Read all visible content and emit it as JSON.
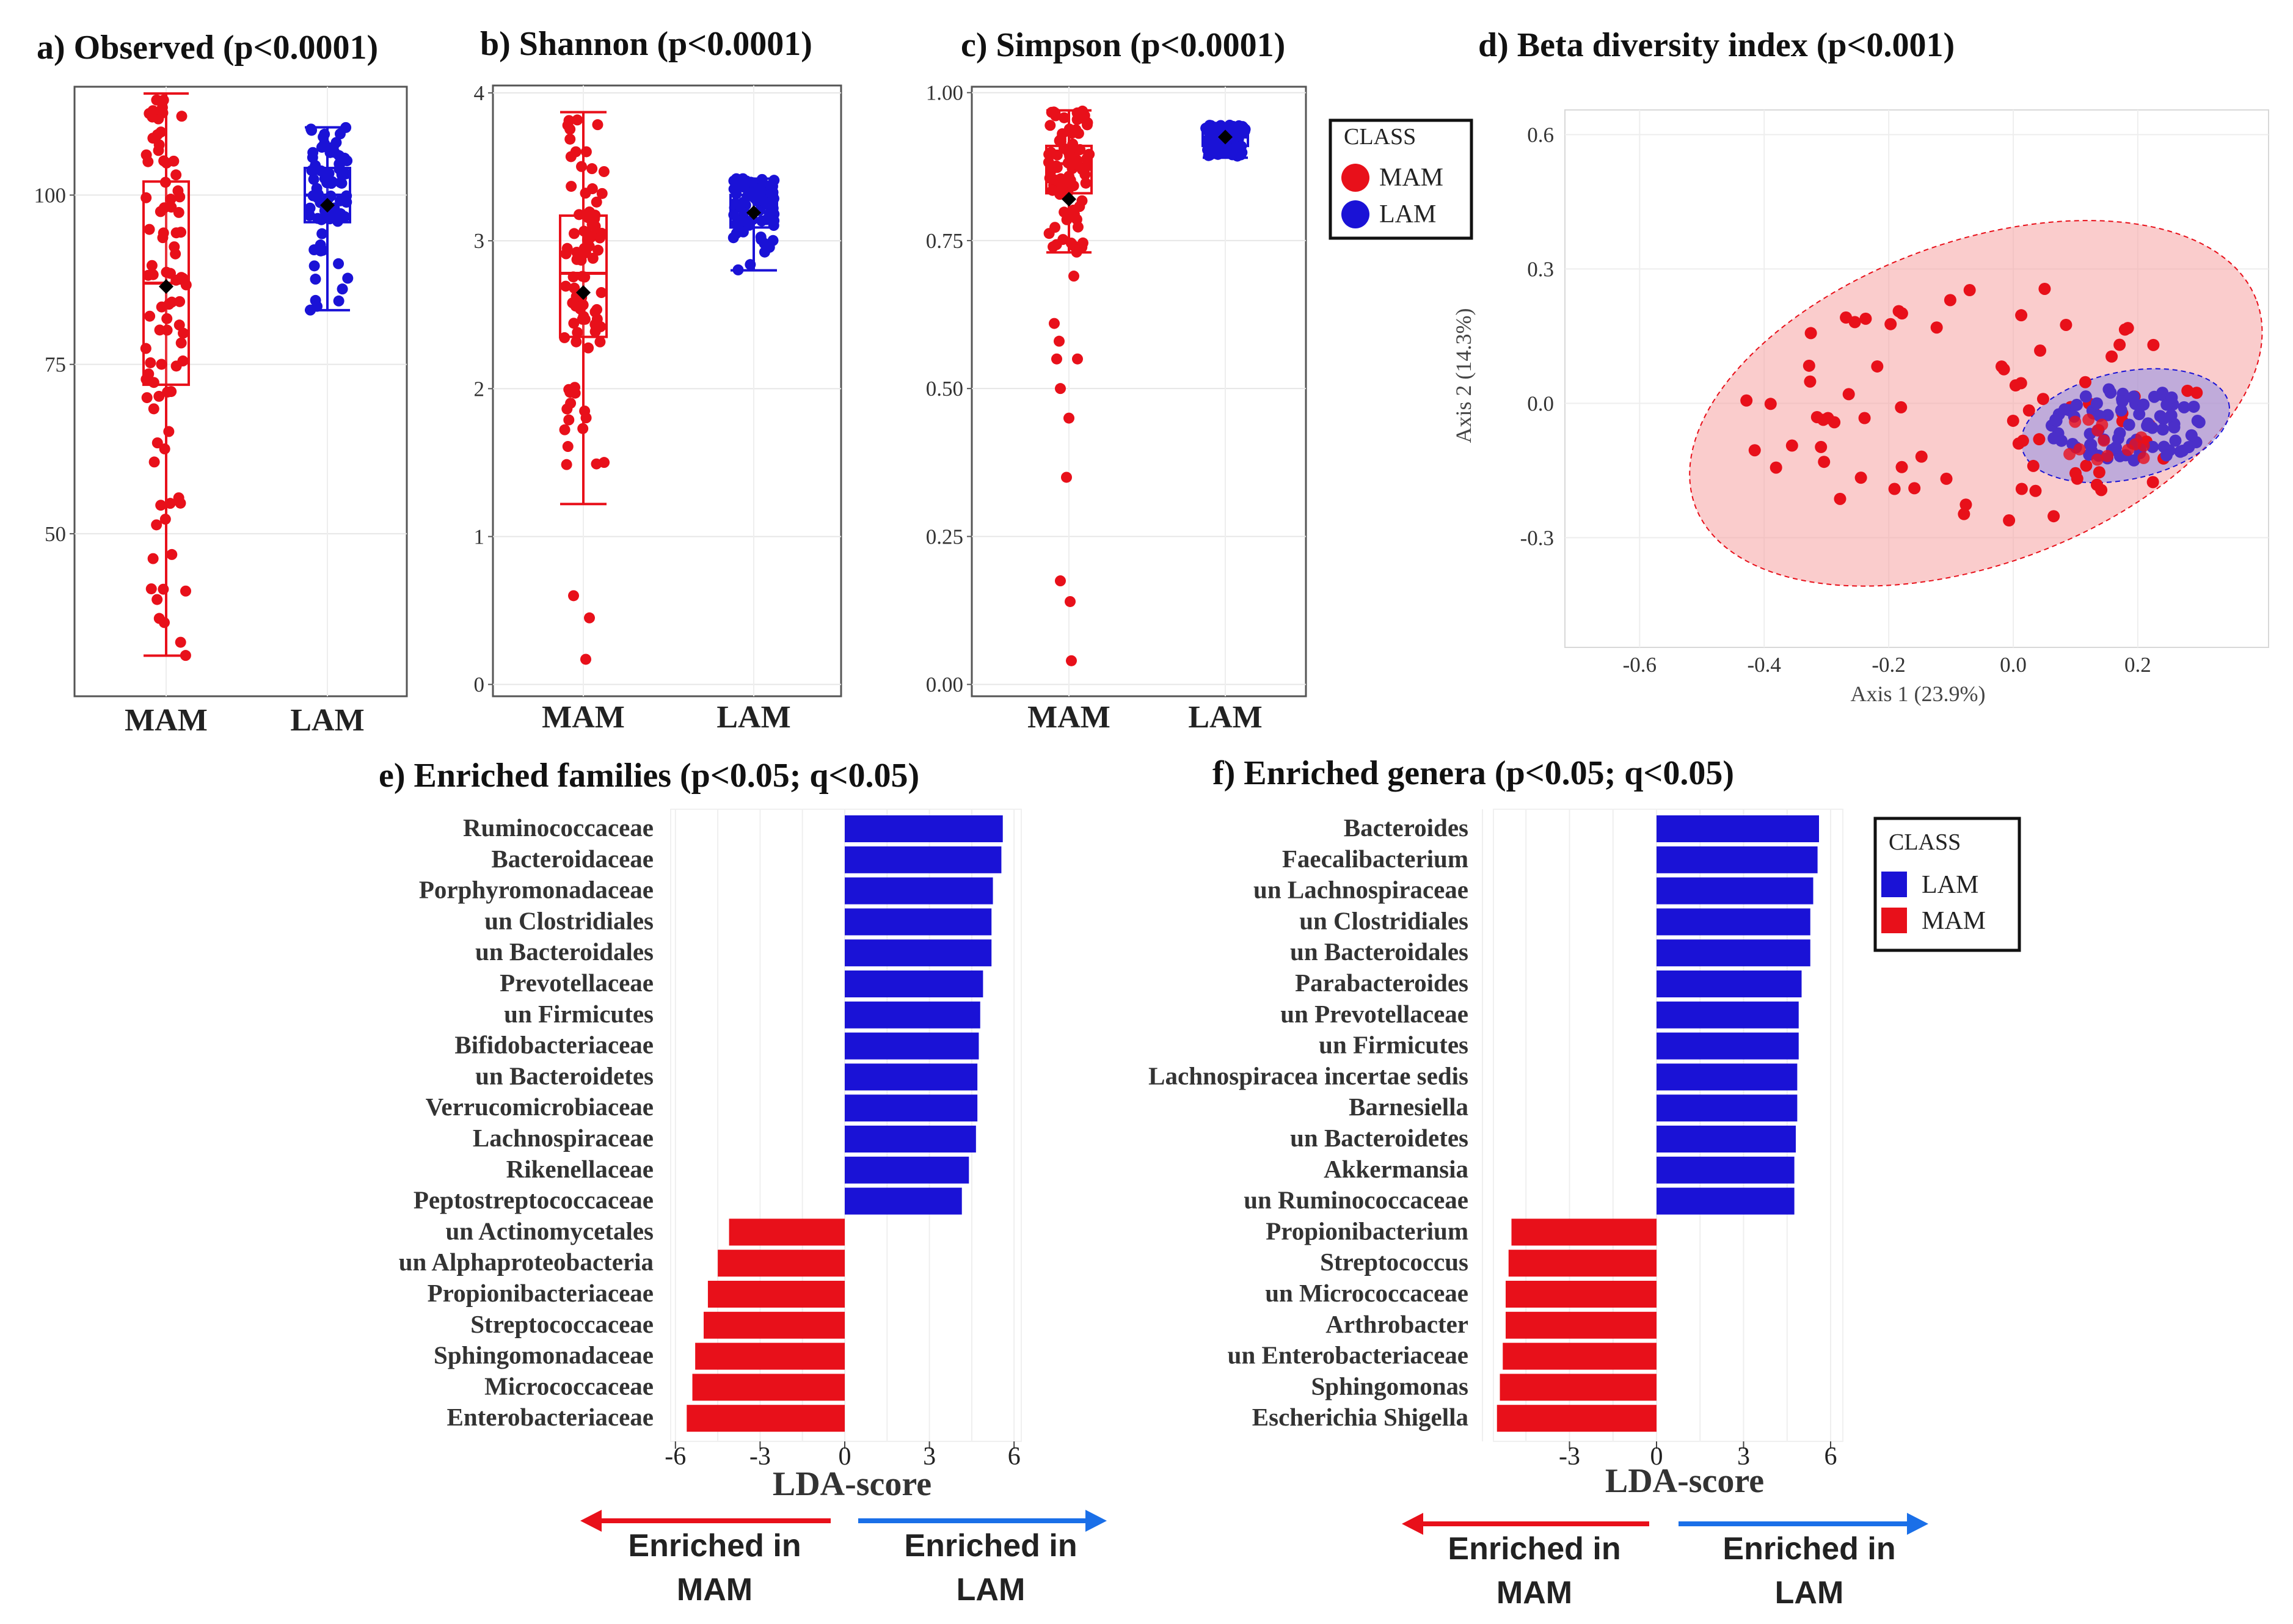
{
  "colors": {
    "mam": "#e8101a",
    "lam": "#1a12d6",
    "arrow_red": "#e8101a",
    "arrow_blue": "#1a6fe8",
    "ellipse_red_fill": "#f5a3a3",
    "ellipse_blue_fill": "#8f8fe6"
  },
  "chart_data": [
    {
      "id": "a",
      "type": "box",
      "title": "a) Observed (p<0.0001)",
      "categories": [
        "MAM",
        "LAM"
      ],
      "yticks": [
        "50",
        "75",
        "100"
      ],
      "ylim": [
        26,
        116
      ],
      "boxes": [
        {
          "name": "MAM",
          "q1": 72,
          "median": 87,
          "q3": 102,
          "whisker_low": 32,
          "whisker_high": 115,
          "mean": 86.5
        },
        {
          "name": "LAM",
          "q1": 96,
          "median": 100,
          "q3": 104,
          "whisker_low": 83,
          "whisker_high": 110,
          "mean": 98.5
        }
      ]
    },
    {
      "id": "b",
      "type": "box",
      "title": "b) Shannon (p<0.0001)",
      "categories": [
        "MAM",
        "LAM"
      ],
      "yticks": [
        "0",
        "1",
        "2",
        "3",
        "4"
      ],
      "ylim": [
        -0.08,
        4.05
      ],
      "boxes": [
        {
          "name": "MAM",
          "q1": 2.35,
          "median": 2.78,
          "q3": 3.17,
          "whisker_low": 1.22,
          "whisker_high": 3.87,
          "mean": 2.65
        },
        {
          "name": "LAM",
          "q1": 3.09,
          "median": 3.2,
          "q3": 3.31,
          "whisker_low": 2.8,
          "whisker_high": 3.42,
          "mean": 3.19
        }
      ]
    },
    {
      "id": "c",
      "type": "box",
      "title": "c) Simpson (p<0.0001)",
      "categories": [
        "MAM",
        "LAM"
      ],
      "yticks": [
        "0.00",
        "0.25",
        "0.50",
        "0.75",
        "1.00"
      ],
      "ylim": [
        -0.02,
        1.01
      ],
      "boxes": [
        {
          "name": "MAM",
          "q1": 0.83,
          "median": 0.88,
          "q3": 0.91,
          "whisker_low": 0.73,
          "whisker_high": 0.97,
          "mean": 0.82
        },
        {
          "name": "LAM",
          "q1": 0.91,
          "median": 0.925,
          "q3": 0.935,
          "whisker_low": 0.89,
          "whisker_high": 0.945,
          "mean": 0.925
        }
      ]
    },
    {
      "id": "d",
      "type": "scatter",
      "title": "d) Beta diversity index (p<0.001)",
      "xlabel": "Axis 1 (23.9%)",
      "ylabel": "Axis 2 (14.3%)",
      "xticks": [
        "-0.6",
        "-0.4",
        "-0.2",
        "0.0",
        "0.2"
      ],
      "yticks": [
        "-0.3",
        "0.0",
        "0.3",
        "0.6"
      ],
      "xlim": [
        -0.72,
        0.41
      ],
      "ylim": [
        -0.545,
        0.655
      ],
      "ellipses": [
        {
          "name": "MAM",
          "cx": -0.06,
          "cy": 0.0,
          "rx": 0.48,
          "ry": 0.36,
          "angle": 20
        },
        {
          "name": "LAM",
          "cx": 0.18,
          "cy": -0.05,
          "rx": 0.17,
          "ry": 0.12,
          "angle": 12
        }
      ]
    },
    {
      "id": "e",
      "type": "bar",
      "title": "e) Enriched families (p<0.05; q<0.05)",
      "xlabel": "LDA-score",
      "xlim": [
        -6,
        6
      ],
      "xticks": [
        "-6",
        "-3",
        "0",
        "3",
        "6"
      ],
      "categories": [
        "Ruminococcaceae",
        "Bacteroidaceae",
        "Porphyromonadaceae",
        "un Clostridiales",
        "un Bacteroidales",
        "Prevotellaceae",
        "un Firmicutes",
        "Bifidobacteriaceae",
        "un Bacteroidetes",
        "Verrucomicrobiaceae",
        "Lachnospiraceae",
        "Rikenellaceae",
        "Peptostreptococcaceae",
        "un Actinomycetales",
        "un Alphaproteobacteria",
        "Propionibacteriaceae",
        "Streptococcaceae",
        "Sphingomonadaceae",
        "Micrococcaceae",
        "Enterobacteriaceae"
      ],
      "values": [
        5.6,
        5.55,
        5.25,
        5.2,
        5.2,
        4.9,
        4.8,
        4.75,
        4.7,
        4.7,
        4.65,
        4.4,
        4.15,
        -4.1,
        -4.5,
        -4.85,
        -5.0,
        -5.3,
        -5.4,
        -5.6
      ]
    },
    {
      "id": "f",
      "type": "bar",
      "title": "f) Enriched genera (p<0.05; q<0.05)",
      "xlabel": "LDA-score",
      "xlim": [
        -6,
        6
      ],
      "xticks": [
        "-3",
        "0",
        "3",
        "6"
      ],
      "categories": [
        "Bacteroides",
        "Faecalibacterium",
        "un Lachnospiraceae",
        "un Clostridiales",
        "un Bacteroidales",
        "Parabacteroides",
        "un Prevotellaceae",
        "un Firmicutes",
        "Lachnospiracea incertae sedis",
        "Barnesiella",
        "un Bacteroidetes",
        "Akkermansia",
        "un Ruminococcaceae",
        "Propionibacterium",
        "Streptococcus",
        "un Micrococcaceae",
        "Arthrobacter",
        "un Enterobacteriaceae",
        "Sphingomonas",
        "Escherichia Shigella"
      ],
      "values": [
        5.6,
        5.55,
        5.4,
        5.3,
        5.3,
        5.0,
        4.9,
        4.9,
        4.85,
        4.85,
        4.8,
        4.75,
        4.75,
        -5.0,
        -5.1,
        -5.2,
        -5.2,
        -5.3,
        -5.4,
        -5.5
      ]
    }
  ],
  "legend_box": {
    "title": "CLASS",
    "items": [
      "MAM",
      "LAM"
    ]
  },
  "legend_bar": {
    "title": "CLASS",
    "items": [
      "LAM",
      "MAM"
    ]
  },
  "arrows": {
    "e_left": "Enriched in\nMAM",
    "e_right": "Enriched in\nLAM",
    "f_left": "Enriched in\nMAM",
    "f_right": "Enriched in\nLAM"
  }
}
